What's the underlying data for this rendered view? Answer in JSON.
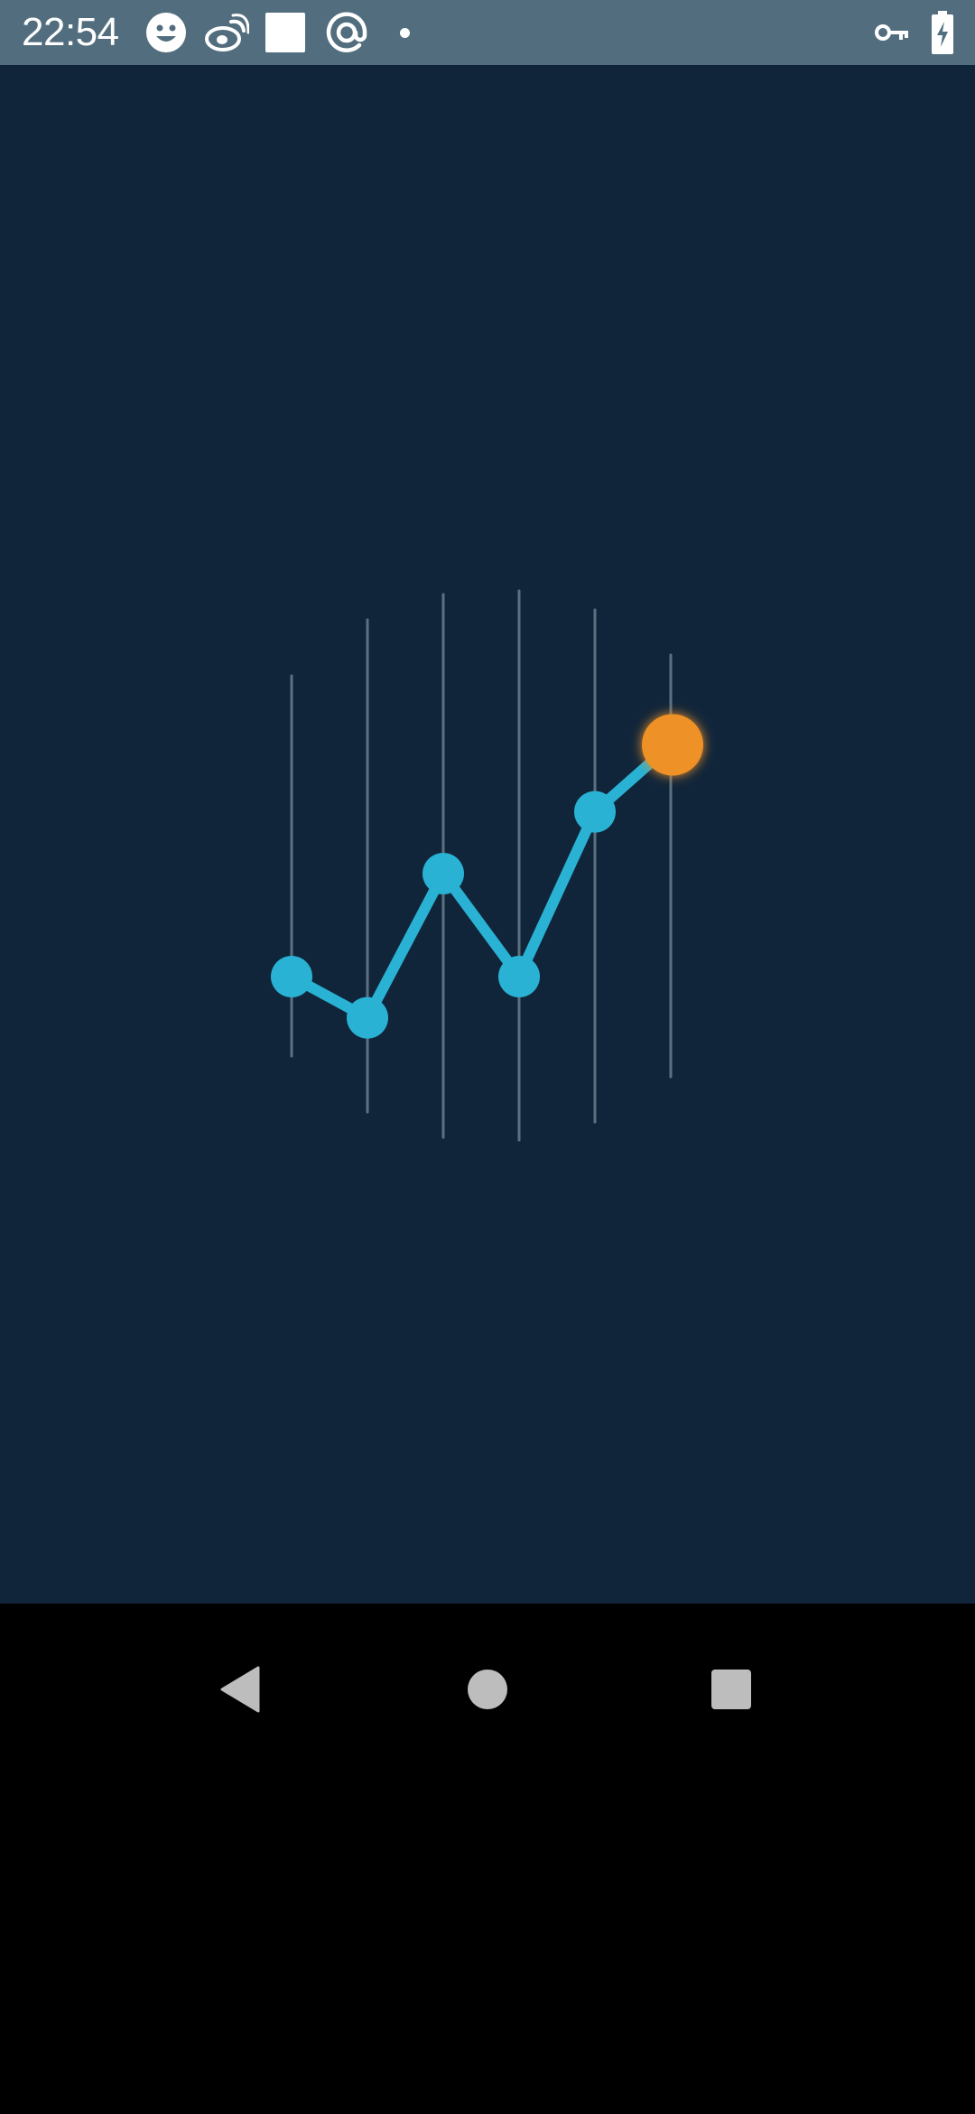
{
  "status_bar": {
    "time": "22:54",
    "left_icons": [
      "smiley-icon",
      "weibo-icon",
      "white-square-icon",
      "at-sign-icon",
      "dot-icon"
    ],
    "right_icons": [
      "vpn-key-icon",
      "battery-charging-icon"
    ]
  },
  "loader": {
    "series_values": [
      0.3,
      0.22,
      0.5,
      0.3,
      0.62,
      0.75
    ],
    "line_color": "#29b2d4",
    "highlight_color": "#ee9127",
    "bar_color": "#5b7182",
    "background": "#11253a"
  },
  "nav_bar": {
    "buttons": [
      "back-icon",
      "home-icon",
      "recents-icon"
    ]
  }
}
